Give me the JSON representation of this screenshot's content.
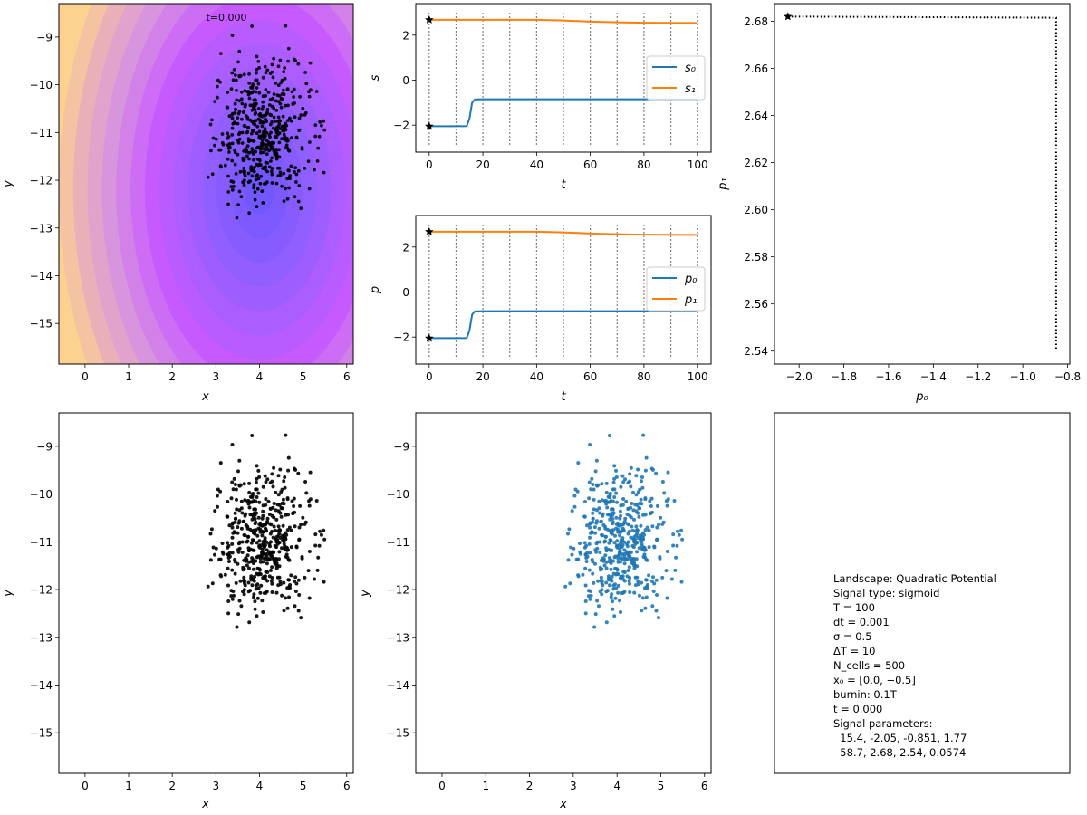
{
  "colors": {
    "black": "#000000",
    "blue": "#1f77b4",
    "orange": "#ff7f0e",
    "vline": "#808080",
    "landscape_low": "#6655ff",
    "landscape_mid": "#d060ff",
    "landscape_high": "#fcd290"
  },
  "chart_data": [
    {
      "name": "landscape",
      "type": "scatter",
      "xlabel": "x",
      "ylabel": "y",
      "xlim": [
        -0.6,
        6.15
      ],
      "ylim": [
        -15.85,
        -8.3
      ],
      "xticks": [
        0,
        1,
        2,
        3,
        4,
        5,
        6
      ],
      "yticks": [
        -9,
        -10,
        -11,
        -12,
        -13,
        -14,
        -15
      ],
      "annotation": "t=0.000",
      "background": "quadratic potential contour",
      "point_cloud": {
        "n": 500,
        "cx": 4.05,
        "cy": -11.0,
        "sx": 0.55,
        "sy": 0.75,
        "xmin": 2.75,
        "xmax": 5.5,
        "ymin": -12.8,
        "ymax": -8.6
      },
      "points_color": "#000000"
    },
    {
      "name": "signal",
      "type": "line",
      "xlabel": "t",
      "ylabel": "s",
      "xlim": [
        -5,
        105
      ],
      "ylim": [
        -3.2,
        3.4
      ],
      "xticks": [
        0,
        20,
        40,
        60,
        80,
        100
      ],
      "yticks": [
        2,
        0,
        -2
      ],
      "vlines": [
        0,
        10,
        20,
        30,
        40,
        50,
        60,
        70,
        80,
        90,
        100
      ],
      "series": [
        {
          "name": "s0",
          "color": "#1f77b4",
          "x": [
            0,
            10,
            14,
            15,
            16,
            17,
            18,
            20,
            100
          ],
          "y": [
            -2.05,
            -2.05,
            -2.04,
            -1.7,
            -1.0,
            -0.86,
            -0.852,
            -0.851,
            -0.851
          ]
        },
        {
          "name": "s1",
          "color": "#ff7f0e",
          "x": [
            0,
            40,
            50,
            60,
            70,
            80,
            100
          ],
          "y": [
            2.68,
            2.68,
            2.65,
            2.6,
            2.57,
            2.55,
            2.54
          ]
        }
      ],
      "start_markers": [
        [
          0,
          -2.05
        ],
        [
          0,
          2.68
        ]
      ],
      "legend": [
        "s₀",
        "s₁"
      ],
      "legend_loc": "right"
    },
    {
      "name": "params",
      "type": "line",
      "xlabel": "t",
      "ylabel": "p",
      "xlim": [
        -5,
        105
      ],
      "ylim": [
        -3.2,
        3.4
      ],
      "xticks": [
        0,
        20,
        40,
        60,
        80,
        100
      ],
      "yticks": [
        2,
        0,
        -2
      ],
      "vlines": [
        0,
        10,
        20,
        30,
        40,
        50,
        60,
        70,
        80,
        90,
        100
      ],
      "series": [
        {
          "name": "p0",
          "color": "#1f77b4",
          "x": [
            0,
            10,
            14,
            15,
            16,
            17,
            18,
            20,
            100
          ],
          "y": [
            -2.05,
            -2.05,
            -2.04,
            -1.7,
            -1.0,
            -0.86,
            -0.852,
            -0.851,
            -0.851
          ]
        },
        {
          "name": "p1",
          "color": "#ff7f0e",
          "x": [
            0,
            40,
            50,
            60,
            70,
            80,
            100
          ],
          "y": [
            2.68,
            2.68,
            2.65,
            2.6,
            2.57,
            2.55,
            2.54
          ]
        }
      ],
      "start_markers": [
        [
          0,
          -2.05
        ],
        [
          0,
          2.68
        ]
      ],
      "legend": [
        "p₀",
        "p₁"
      ],
      "legend_loc": "right"
    },
    {
      "name": "phase",
      "type": "line",
      "xlabel": "p₀",
      "ylabel": "p₁",
      "xlim": [
        -2.11,
        -0.79
      ],
      "ylim": [
        2.5345,
        2.6875
      ],
      "xticks": [
        -2.0,
        -1.8,
        -1.6,
        -1.4,
        -1.2,
        -1.0,
        -0.8
      ],
      "xtick_labels": [
        "−2.0",
        "−1.8",
        "−1.6",
        "−1.4",
        "−1.2",
        "−1.0",
        "−0.8"
      ],
      "yticks": [
        2.68,
        2.66,
        2.64,
        2.62,
        2.6,
        2.58,
        2.56,
        2.54
      ],
      "ytick_labels": [
        "2.68",
        "2.66",
        "2.64",
        "2.62",
        "2.60",
        "2.58",
        "2.56",
        "2.54"
      ],
      "path": [
        [
          -2.05,
          2.682
        ],
        [
          -0.851,
          2.6815
        ],
        [
          -0.851,
          2.541
        ]
      ],
      "start_marker": [
        -2.05,
        2.682
      ],
      "line_style": "dotted"
    },
    {
      "name": "cells_black",
      "type": "scatter",
      "xlabel": "x",
      "ylabel": "y",
      "xlim": [
        -0.6,
        6.15
      ],
      "ylim": [
        -15.85,
        -8.3
      ],
      "xticks": [
        0,
        1,
        2,
        3,
        4,
        5,
        6
      ],
      "yticks": [
        -9,
        -10,
        -11,
        -12,
        -13,
        -14,
        -15
      ],
      "points_color": "#000000"
    },
    {
      "name": "cells_blue",
      "type": "scatter",
      "xlabel": "x",
      "ylabel": "y",
      "xlim": [
        -0.6,
        6.15
      ],
      "ylim": [
        -15.85,
        -8.3
      ],
      "xticks": [
        0,
        1,
        2,
        3,
        4,
        5,
        6
      ],
      "yticks": [
        -9,
        -10,
        -11,
        -12,
        -13,
        -14,
        -15
      ],
      "points_color": "#1f77b4"
    }
  ],
  "info_panel": {
    "lines": [
      "Landscape: Quadratic Potential",
      "Signal type: sigmoid",
      "T = 100",
      "dt = 0.001",
      "σ = 0.5",
      "ΔT = 10",
      "N_cells = 500",
      "x₀ = [0.0, −0.5]",
      "burnin: 0.1T",
      "t = 0.000",
      "Signal parameters:",
      "  15.4, -2.05, -0.851, 1.77",
      "  58.7, 2.68, 2.54, 0.0574"
    ]
  }
}
